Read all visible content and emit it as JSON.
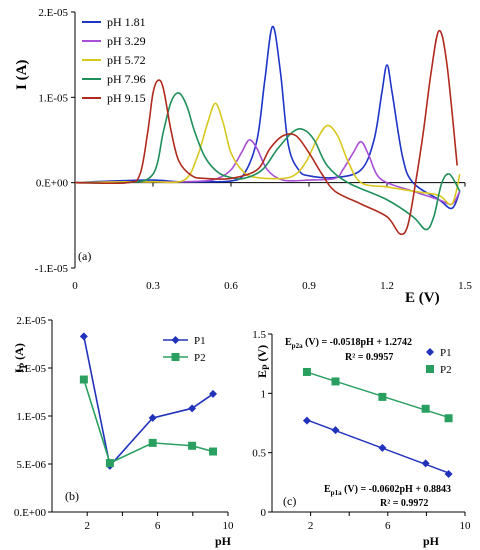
{
  "chart_data": [
    {
      "type": "line",
      "panel": "(a)",
      "xlabel": "E (V)",
      "ylabel": "I (A)",
      "xlim": [
        0,
        1.5
      ],
      "ylim": [
        -1e-05,
        2e-05
      ],
      "x_ticks": [
        "0",
        "0.3",
        "0.6",
        "0.9",
        "1.2",
        "1.5"
      ],
      "y_ticks": [
        "-1.E-05",
        "0.E+00",
        "1.E-05",
        "2.E-05"
      ],
      "legend_position": "top-left",
      "grid": false,
      "series": [
        {
          "name": "pH 1.81",
          "color": "#1f35c8",
          "x": [
            0.0,
            0.15,
            0.3,
            0.4,
            0.5,
            0.6,
            0.65,
            0.7,
            0.73,
            0.76,
            0.79,
            0.82,
            0.86,
            0.9,
            1.0,
            1.1,
            1.15,
            1.18,
            1.2,
            1.22,
            1.26,
            1.3,
            1.4,
            1.45,
            1.48
          ],
          "y": [
            0.0,
            2e-07,
            3e-07,
            1e-07,
            1e-07,
            2e-07,
            1e-06,
            5e-06,
            1.2e-05,
            1.83e-05,
            1.3e-05,
            4.5e-06,
            1.5e-06,
            8e-07,
            6e-07,
            1.5e-06,
            5e-06,
            1.05e-05,
            1.38e-05,
            1.05e-05,
            3e-06,
            0.0,
            -2e-06,
            -3e-06,
            -1e-06
          ]
        },
        {
          "name": "pH 3.29",
          "color": "#a94fd6",
          "x": [
            0.0,
            0.2,
            0.4,
            0.5,
            0.55,
            0.6,
            0.64,
            0.67,
            0.7,
            0.74,
            0.8,
            0.9,
            1.0,
            1.03,
            1.07,
            1.1,
            1.13,
            1.16,
            1.2,
            1.3,
            1.4,
            1.45,
            1.48
          ],
          "y": [
            0.0,
            1e-07,
            1e-07,
            2e-07,
            5e-07,
            1.5e-06,
            3.5e-06,
            5e-06,
            4e-06,
            1.5e-06,
            3e-07,
            3e-07,
            5e-07,
            1.5e-06,
            3.5e-06,
            4.8e-06,
            3.2e-06,
            1e-06,
            0.0,
            -1e-06,
            -2e-06,
            -2.5e-06,
            -1e-06
          ]
        },
        {
          "name": "pH 5.72",
          "color": "#d8c81e",
          "x": [
            0.0,
            0.2,
            0.3,
            0.42,
            0.47,
            0.51,
            0.54,
            0.57,
            0.6,
            0.65,
            0.7,
            0.8,
            0.85,
            0.89,
            0.93,
            0.97,
            1.01,
            1.05,
            1.1,
            1.2,
            1.3,
            1.4,
            1.45,
            1.48
          ],
          "y": [
            0.0,
            1e-07,
            1e-07,
            3e-07,
            3e-06,
            7e-06,
            9.3e-06,
            7e-06,
            3.5e-06,
            1.2e-06,
            6e-07,
            5e-07,
            1e-06,
            2.5e-06,
            5e-06,
            6.7e-06,
            5.5e-06,
            2.5e-06,
            0.0,
            -5e-07,
            -1e-06,
            -1.5e-06,
            -2.5e-06,
            1e-06
          ]
        },
        {
          "name": "pH 7.96",
          "color": "#1e8f5a",
          "x": [
            0.0,
            0.2,
            0.3,
            0.34,
            0.37,
            0.4,
            0.43,
            0.46,
            0.5,
            0.55,
            0.6,
            0.65,
            0.72,
            0.78,
            0.84,
            0.88,
            0.92,
            0.97,
            1.05,
            1.2,
            1.3,
            1.35,
            1.38,
            1.41,
            1.44,
            1.48
          ],
          "y": [
            0.0,
            0.0,
            1e-06,
            6e-06,
            9.5e-06,
            1.05e-05,
            9e-06,
            6e-06,
            3e-06,
            1.2e-06,
            6e-07,
            5e-07,
            1.5e-06,
            4e-06,
            6e-06,
            6.2e-06,
            5e-06,
            2e-06,
            0.0,
            -2e-06,
            -4e-06,
            -5.5e-06,
            -4e-06,
            -1e-07,
            1e-06,
            -1e-06
          ]
        },
        {
          "name": "pH 9.15",
          "color": "#b02a1e",
          "x": [
            0.0,
            0.2,
            0.25,
            0.28,
            0.3,
            0.32,
            0.34,
            0.37,
            0.4,
            0.45,
            0.5,
            0.6,
            0.7,
            0.75,
            0.8,
            0.85,
            0.9,
            0.95,
            1.0,
            1.1,
            1.2,
            1.25,
            1.28,
            1.31,
            1.34,
            1.37,
            1.4,
            1.43,
            1.47
          ],
          "y": [
            0.0,
            0.0,
            1e-06,
            6e-06,
            1.05e-05,
            1.2e-05,
            1.1e-05,
            6e-06,
            2.5e-06,
            8e-07,
            5e-07,
            5e-07,
            1.5e-06,
            4e-06,
            5.5e-06,
            5.5e-06,
            3.5e-06,
            1e-06,
            -1e-06,
            -2.5e-06,
            -4e-06,
            -6e-06,
            -5e-06,
            0.0,
            6e-06,
            1.3e-05,
            1.78e-05,
            1.4e-05,
            2e-06
          ]
        }
      ]
    },
    {
      "type": "line",
      "panel": "(b)",
      "xlabel": "pH",
      "ylabel": "I_P (A)",
      "xlim": [
        0,
        10
      ],
      "ylim": [
        0,
        2e-05
      ],
      "x_ticks": [
        "0",
        "2",
        "4",
        "6",
        "8",
        "10"
      ],
      "y_ticks": [
        "0.E+00",
        "5.E-06",
        "1.E-05",
        "2.E-05",
        "2.E-05"
      ],
      "legend_position": "top-right",
      "grid": false,
      "series": [
        {
          "name": "P1",
          "color": "#2233bb",
          "marker": "diamond",
          "x": [
            1.81,
            3.29,
            5.72,
            7.96,
            9.15
          ],
          "y": [
            1.83e-05,
            4.8e-06,
            9.8e-06,
            1.08e-05,
            1.23e-05
          ]
        },
        {
          "name": "P2",
          "color": "#2aa060",
          "marker": "square",
          "x": [
            1.81,
            3.29,
            5.72,
            7.96,
            9.15
          ],
          "y": [
            1.38e-05,
            5.1e-06,
            7.2e-06,
            6.9e-06,
            6.3e-06
          ]
        }
      ]
    },
    {
      "type": "scatter",
      "panel": "(c)",
      "xlabel": "pH",
      "ylabel": "E_P (V)",
      "xlim": [
        0,
        10
      ],
      "ylim": [
        0,
        1.5
      ],
      "x_ticks": [
        "0",
        "2",
        "4",
        "6",
        "8",
        "10"
      ],
      "y_ticks": [
        "0",
        "0.5",
        "1",
        "1.5"
      ],
      "legend_position": "right",
      "grid": false,
      "series": [
        {
          "name": "P1",
          "color": "#2233bb",
          "marker": "diamond",
          "x": [
            1.81,
            3.29,
            5.72,
            7.96,
            9.15
          ],
          "y": [
            0.77,
            0.69,
            0.54,
            0.41,
            0.32
          ]
        },
        {
          "name": "P2",
          "color": "#2aa060",
          "marker": "square",
          "x": [
            1.81,
            3.29,
            5.72,
            7.96,
            9.15
          ],
          "y": [
            1.18,
            1.1,
            0.97,
            0.87,
            0.79
          ]
        }
      ],
      "annotations": {
        "p2_eq_sub": "p2a",
        "p2_eq_rest": " (V) = -0.0518pH + 1.2742",
        "p2_r2": "R² = 0.9957",
        "p1_eq_sub": "p1a",
        "p1_eq_rest": " (V) = -0.0602pH + 0.8843",
        "p1_r2": "R² = 0.9972"
      }
    }
  ]
}
